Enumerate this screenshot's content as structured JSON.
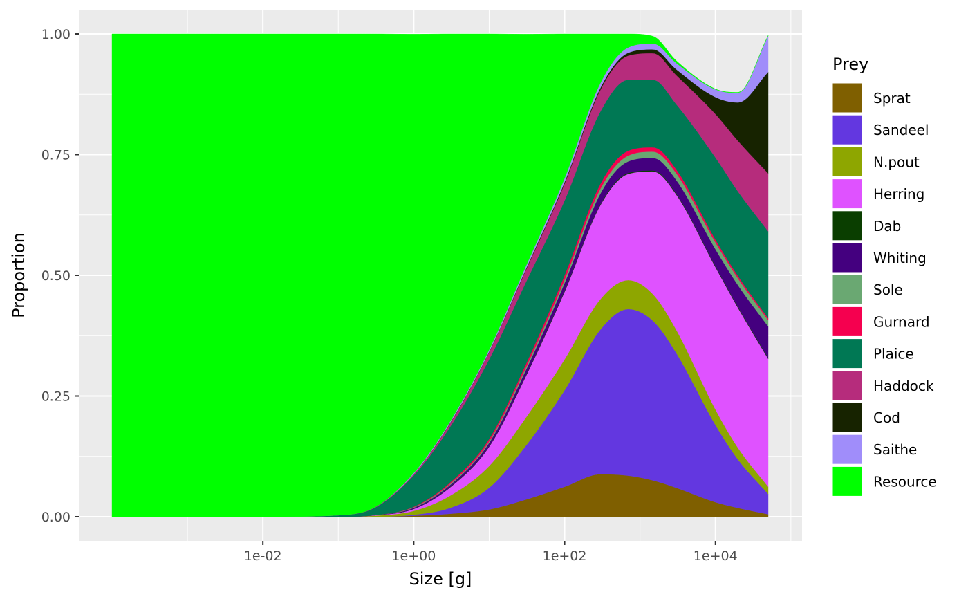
{
  "chart_data": {
    "type": "area",
    "stacked": true,
    "xscale": "log10",
    "xlabel": "Size [g]",
    "ylabel": "Proportion",
    "xlim": [
      0.0001,
      50000
    ],
    "ylim": [
      0,
      1
    ],
    "x_ticks": [
      {
        "value": 0.01,
        "label": "1e-02"
      },
      {
        "value": 1,
        "label": "1e+00"
      },
      {
        "value": 100,
        "label": "1e+02"
      },
      {
        "value": 10000,
        "label": "1e+04"
      }
    ],
    "y_ticks": [
      {
        "value": 0,
        "label": "0.00"
      },
      {
        "value": 0.25,
        "label": "0.25"
      },
      {
        "value": 0.5,
        "label": "0.50"
      },
      {
        "value": 0.75,
        "label": "0.75"
      },
      {
        "value": 1,
        "label": "1.00"
      }
    ],
    "grid": true,
    "legend": {
      "title": "Prey",
      "position": "right"
    },
    "x": [
      0.0001,
      0.01,
      0.1,
      0.3,
      1,
      3,
      10,
      30,
      100,
      300,
      700,
      1500,
      3000,
      10000,
      20000,
      50000
    ],
    "series": [
      {
        "name": "Sprat",
        "color": "#7f5f00",
        "values": [
          0,
          0,
          0,
          0,
          0.002,
          0.006,
          0.015,
          0.035,
          0.062,
          0.088,
          0.085,
          0.075,
          0.06,
          0.03,
          0.018,
          0.005
        ]
      },
      {
        "name": "Sandeel",
        "color": "#6337e0",
        "values": [
          0,
          0,
          0,
          0,
          0.002,
          0.012,
          0.045,
          0.11,
          0.2,
          0.3,
          0.345,
          0.33,
          0.28,
          0.16,
          0.1,
          0.042
        ]
      },
      {
        "name": "N.pout",
        "color": "#8ea600",
        "values": [
          0,
          0,
          0,
          0.002,
          0.008,
          0.025,
          0.045,
          0.058,
          0.064,
          0.063,
          0.06,
          0.055,
          0.048,
          0.032,
          0.024,
          0.015
        ]
      },
      {
        "name": "Herring",
        "color": "#df52ff",
        "values": [
          0,
          0,
          0,
          0.001,
          0.004,
          0.017,
          0.04,
          0.085,
          0.14,
          0.195,
          0.22,
          0.255,
          0.28,
          0.295,
          0.29,
          0.265
        ]
      },
      {
        "name": "Dab",
        "color": "#0a3e00",
        "values": [
          0,
          0,
          0,
          0,
          0.0005,
          0.001,
          0.001,
          0.0015,
          0.002,
          0.002,
          0.002,
          0.002,
          0.002,
          0.002,
          0.002,
          0.002
        ]
      },
      {
        "name": "Whiting",
        "color": "#44007f",
        "values": [
          0,
          0,
          0,
          0,
          0.002,
          0.004,
          0.007,
          0.011,
          0.016,
          0.022,
          0.024,
          0.026,
          0.028,
          0.035,
          0.045,
          0.065
        ]
      },
      {
        "name": "Sole",
        "color": "#6aa872",
        "values": [
          0,
          0,
          0,
          0,
          0.001,
          0.002,
          0.003,
          0.005,
          0.007,
          0.01,
          0.012,
          0.013,
          0.014,
          0.014,
          0.014,
          0.013
        ]
      },
      {
        "name": "Gurnard",
        "color": "#f5004f",
        "values": [
          0,
          0,
          0,
          0,
          0.001,
          0.003,
          0.005,
          0.007,
          0.009,
          0.01,
          0.01,
          0.009,
          0.008,
          0.006,
          0.005,
          0.004
        ]
      },
      {
        "name": "Plaice",
        "color": "#007854",
        "values": [
          0,
          0,
          0.003,
          0.015,
          0.065,
          0.115,
          0.165,
          0.17,
          0.155,
          0.15,
          0.147,
          0.14,
          0.135,
          0.17,
          0.175,
          0.18
        ]
      },
      {
        "name": "Haddock",
        "color": "#b62c7c",
        "values": [
          0,
          0,
          0,
          0.001,
          0.003,
          0.007,
          0.015,
          0.025,
          0.035,
          0.045,
          0.05,
          0.055,
          0.06,
          0.09,
          0.105,
          0.12
        ]
      },
      {
        "name": "Cod",
        "color": "#172300",
        "values": [
          0,
          0,
          0,
          0,
          0,
          0.001,
          0.001,
          0.002,
          0.003,
          0.004,
          0.006,
          0.008,
          0.012,
          0.035,
          0.08,
          0.21
        ]
      },
      {
        "name": "Saithe",
        "color": "#a08dfa",
        "values": [
          0,
          0,
          0,
          0,
          0.002,
          0.003,
          0.004,
          0.006,
          0.008,
          0.01,
          0.011,
          0.012,
          0.013,
          0.016,
          0.02,
          0.075
        ]
      },
      {
        "name": "Resource",
        "color": "#00ff00",
        "values": [
          1,
          1,
          0.997,
          0.981,
          0.909,
          0.804,
          0.654,
          0.484,
          0.299,
          0.101,
          0.028,
          0.015,
          0.005,
          0.001,
          0.001,
          0.001
        ]
      }
    ]
  }
}
